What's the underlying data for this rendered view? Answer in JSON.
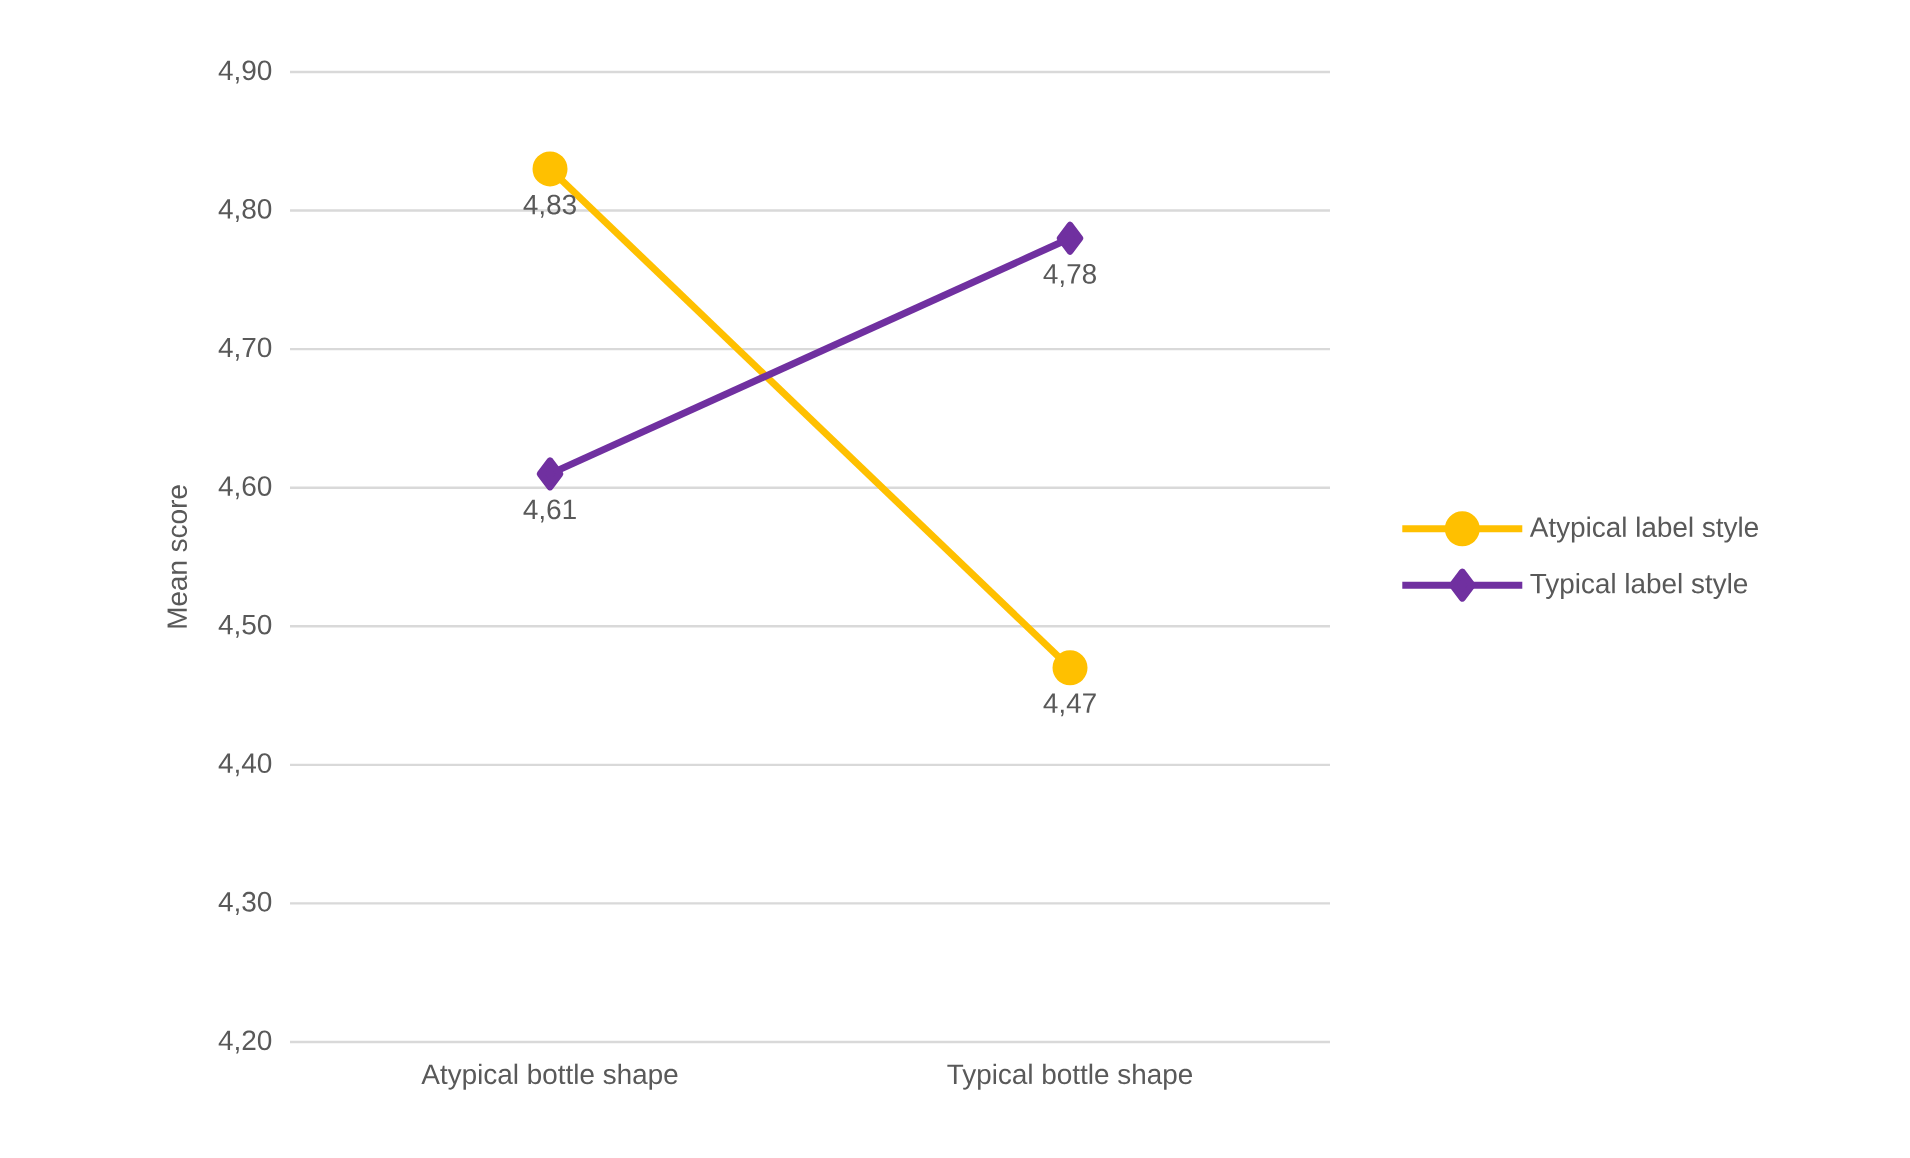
{
  "chart_data": {
    "type": "line",
    "ylabel": "Mean score",
    "categories": [
      "Atypical bottle shape",
      "Typical bottle shape"
    ],
    "series": [
      {
        "name": "Atypical label style",
        "color": "#ffc000",
        "marker": "circle",
        "values": [
          4.83,
          4.47
        ],
        "value_labels": [
          "4,83",
          "4,47"
        ]
      },
      {
        "name": "Typical label style",
        "color": "#7030a0",
        "marker": "diamond",
        "values": [
          4.61,
          4.78
        ],
        "value_labels": [
          "4,61",
          "4,78"
        ]
      }
    ],
    "ylim": [
      4.2,
      4.9
    ],
    "yticks": [
      {
        "value": 4.2,
        "label": "4,20"
      },
      {
        "value": 4.3,
        "label": "4,30"
      },
      {
        "value": 4.4,
        "label": "4,40"
      },
      {
        "value": 4.5,
        "label": "4,50"
      },
      {
        "value": 4.6,
        "label": "4,60"
      },
      {
        "value": 4.7,
        "label": "4,70"
      },
      {
        "value": 4.8,
        "label": "4,80"
      },
      {
        "value": 4.9,
        "label": "4,90"
      }
    ],
    "grid": "y",
    "legend": "right"
  }
}
